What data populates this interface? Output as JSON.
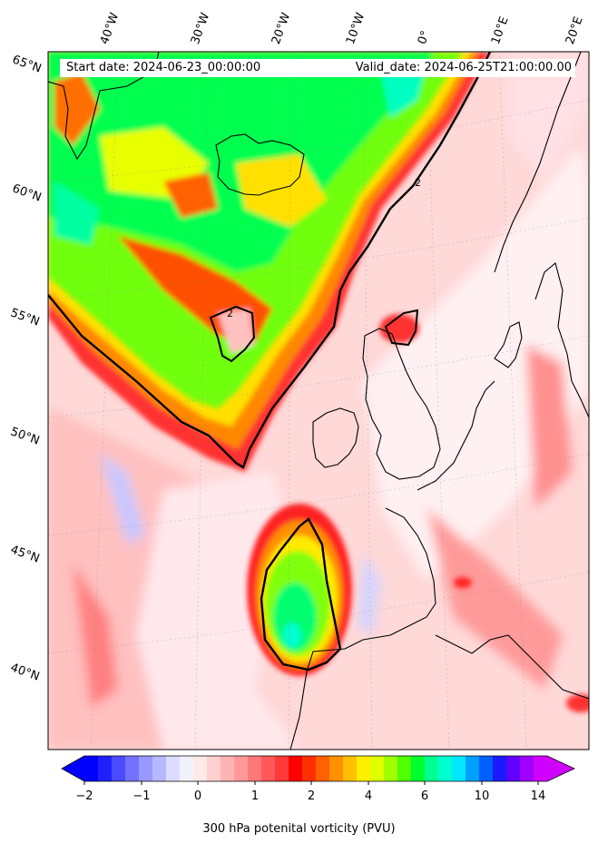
{
  "header": {
    "start_date": "Start date: 2024-06-23_00:00:00",
    "valid_date": "Valid_date: 2024-06-25T21:00:00.00"
  },
  "longitude_labels": [
    "40°W",
    "30°W",
    "20°W",
    "10°W",
    "0°",
    "10°E",
    "20°E"
  ],
  "latitude_labels": [
    "65°N",
    "60°N",
    "55°N",
    "50°N",
    "45°N",
    "40°N"
  ],
  "colorbar": {
    "title": "300 hPa potenital vorticity (PVU)",
    "tick_labels": [
      "−2",
      "−1",
      "0",
      "1",
      "2",
      "4",
      "6",
      "10",
      "14"
    ],
    "colors": [
      "#0000ff",
      "#2020ff",
      "#4a4aff",
      "#7272ff",
      "#9898ff",
      "#b8b8ff",
      "#dcdcff",
      "#f2f2ff",
      "#ffe8e8",
      "#ffd0d0",
      "#ffb4b4",
      "#ff9898",
      "#ff7878",
      "#ff5858",
      "#ff3838",
      "#ff0000",
      "#ff3000",
      "#ff6000",
      "#ff9000",
      "#ffc000",
      "#ffee00",
      "#ddff00",
      "#a0ff00",
      "#50ff00",
      "#00ff30",
      "#00ff90",
      "#00ffd0",
      "#00e8ff",
      "#00a0ff",
      "#0060ff",
      "#1a1aff",
      "#6000ff",
      "#a000ff",
      "#d000ff"
    ]
  },
  "map": {
    "region": "North Atlantic and Western Europe",
    "pv_contour_line": "2"
  }
}
